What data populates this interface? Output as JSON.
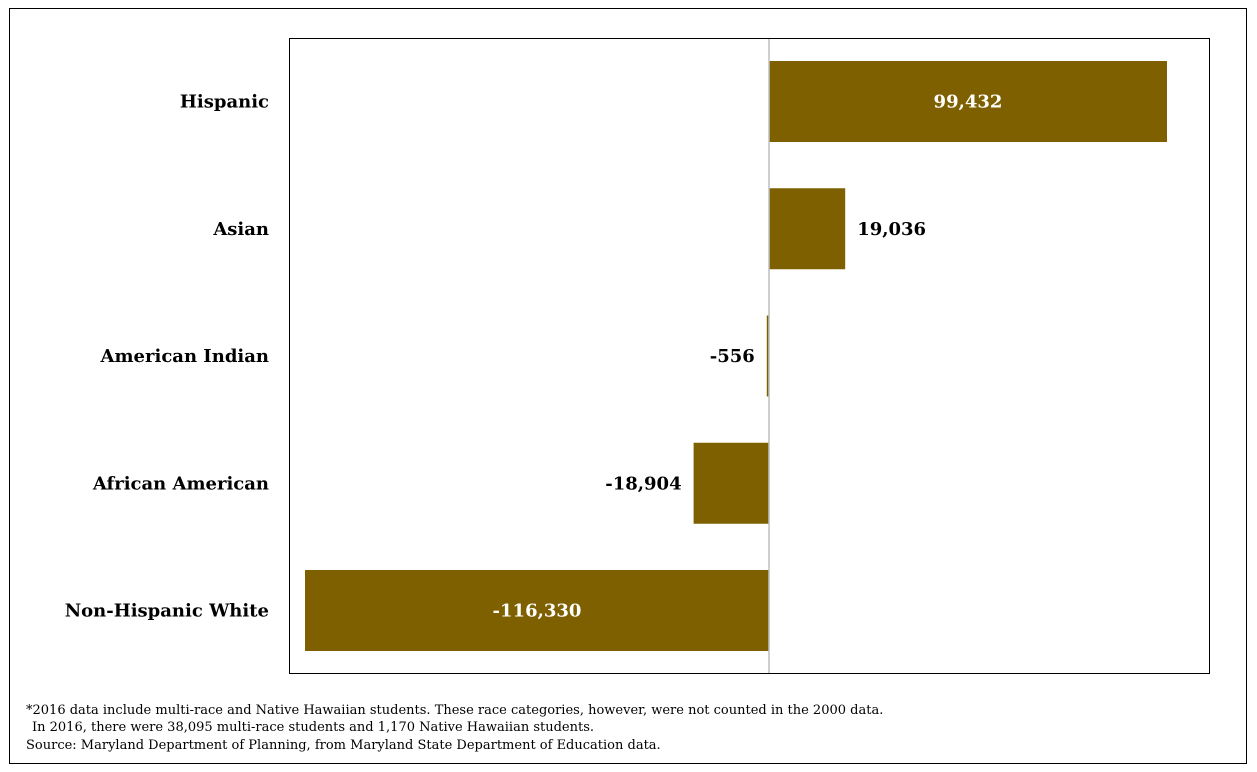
{
  "colors": {
    "bar": "#7f6000",
    "inside_label": "#ffffff",
    "outside_label": "#000000",
    "zero_line": "#bfbfbf"
  },
  "chart_data": {
    "type": "bar",
    "orientation": "horizontal",
    "categories": [
      "Hispanic",
      "Asian",
      "American Indian",
      "African American",
      "Non-Hispanic White"
    ],
    "values": [
      99432,
      19036,
      -556,
      -18904,
      -116330
    ],
    "value_labels": [
      "99,432",
      "19,036",
      "-556",
      "-18,904",
      "-116,330"
    ],
    "xlim": [
      -117000,
      100000
    ],
    "grid": false,
    "legend": "none"
  },
  "footnotes": {
    "line1": "*2016 data include multi-race and Native Hawaiian students. These race categories, however, were not counted in the 2000 data.",
    "line2": "In 2016, there were 38,095 multi-race students and 1,170 Native Hawaiian students.",
    "line3": "Source: Maryland Department of Planning, from Maryland State Department of Education data."
  }
}
